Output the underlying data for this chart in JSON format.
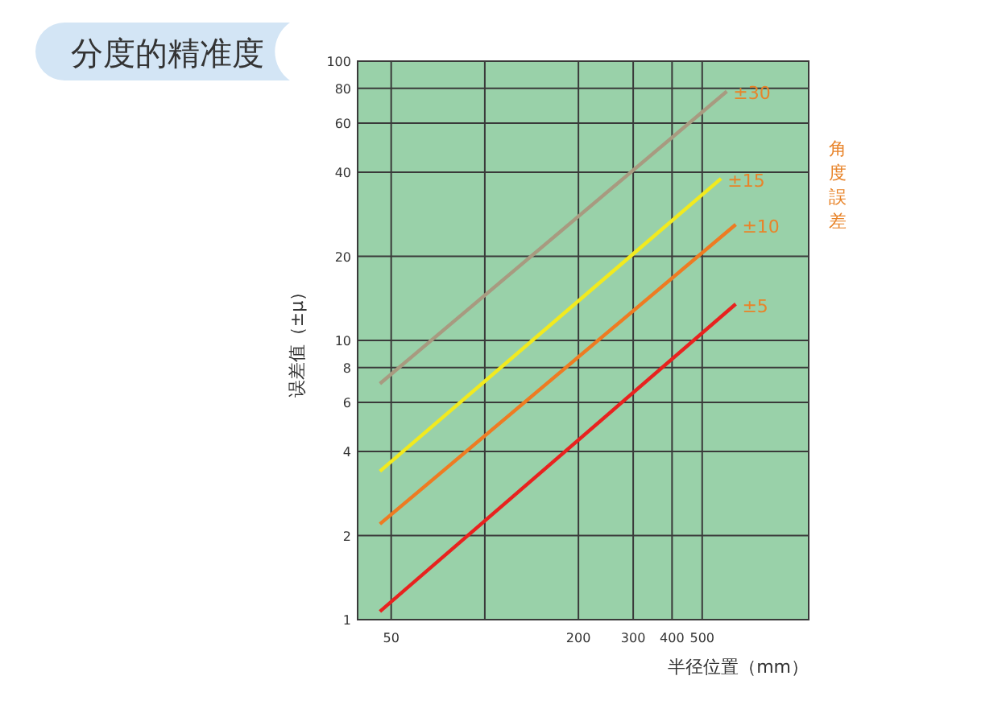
{
  "chart_data": {
    "type": "line",
    "title": "分度的精准度",
    "xlabel": "半径位置（mm）",
    "ylabel": "误差值（±μ）",
    "legend_title": "角度誤差",
    "log": "xy",
    "grid": true,
    "xlim": [
      39,
      1100
    ],
    "xticks": [
      50,
      {
        "value": 100,
        "label": null
      },
      200,
      300,
      400,
      500
    ],
    "ylim": [
      1,
      100
    ],
    "yticks": [
      1,
      2,
      4,
      6,
      8,
      10,
      20,
      40,
      60,
      80,
      100
    ],
    "series": [
      {
        "name": "±30",
        "color": "#a89a80",
        "x": [
          46,
          600
        ],
        "values": [
          7,
          78
        ]
      },
      {
        "name": "±15",
        "color": "#f2ea1e",
        "x": [
          46,
          575
        ],
        "values": [
          3.4,
          38
        ]
      },
      {
        "name": "±10",
        "color": "#ee7b22",
        "x": [
          46,
          641
        ],
        "values": [
          2.2,
          26
        ]
      },
      {
        "name": "±5",
        "color": "#e8221f",
        "x": [
          46,
          641
        ],
        "values": [
          1.07,
          13.5
        ]
      }
    ]
  }
}
